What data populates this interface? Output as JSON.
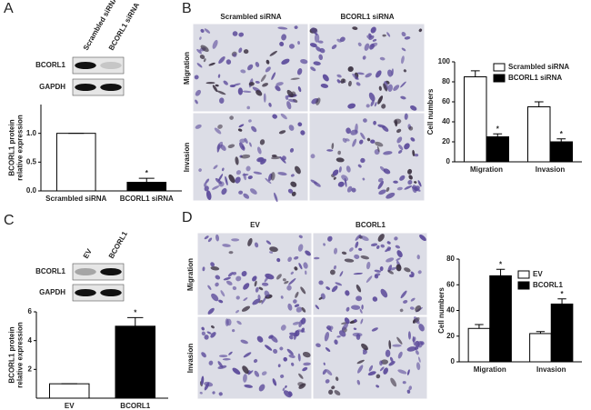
{
  "panels": [
    {
      "label": "A",
      "blot": {
        "columns": [
          "Scrambled siRNA",
          "BCORL1 siRNA"
        ],
        "rows": [
          "BCORL1",
          "GAPDH"
        ]
      }
    },
    {
      "label": "B",
      "images": {
        "columns": [
          "Scrambled siRNA",
          "BCORL1 siRNA"
        ],
        "rows": [
          "Migration",
          "Invasion"
        ]
      }
    },
    {
      "label": "C",
      "blot": {
        "columns": [
          "EV",
          "BCORL1"
        ],
        "rows": [
          "BCORL1",
          "GAPDH"
        ]
      }
    },
    {
      "label": "D",
      "images": {
        "columns": [
          "EV",
          "BCORL1"
        ],
        "rows": [
          "Migration",
          "Invasion"
        ]
      }
    }
  ],
  "chart_data": [
    {
      "type": "bar",
      "ylabel": [
        "BCORL1 protein",
        "relative expression"
      ],
      "categories": [
        "Scrambled siRNA",
        "BCORL1 siRNA"
      ],
      "values": [
        1.0,
        0.15
      ],
      "errors": [
        0,
        0.07
      ],
      "value_annotations": [
        null,
        "*"
      ],
      "colors": [
        "#ffffff",
        "#000000"
      ],
      "ylim": [
        0,
        1.5
      ],
      "yticks": [
        {
          "value": 0,
          "label": "0.0"
        },
        {
          "value": 0.5,
          "label": "0.5"
        },
        {
          "value": 1.0,
          "label": "1.0"
        }
      ]
    },
    {
      "type": "bar",
      "ylabel": [
        "Cell numbers"
      ],
      "categories": [
        "Migration",
        "Invasion"
      ],
      "series": [
        {
          "name": "Scrambled siRNA",
          "color": "#ffffff",
          "values": [
            85,
            55
          ],
          "errors": [
            6,
            5
          ]
        },
        {
          "name": "BCORL1 siRNA",
          "color": "#000000",
          "values": [
            25,
            20
          ],
          "errors": [
            3,
            3
          ],
          "value_annotations": [
            "*",
            "*"
          ]
        }
      ],
      "ylim": [
        0,
        100
      ],
      "yticks": [
        0,
        20,
        40,
        60,
        80,
        100
      ]
    },
    {
      "type": "bar",
      "ylabel": [
        "BCORL1 protein",
        "relative expression"
      ],
      "categories": [
        "EV",
        "BCORL1"
      ],
      "values": [
        1,
        5
      ],
      "errors": [
        0,
        0.6
      ],
      "value_annotations": [
        null,
        "*"
      ],
      "colors": [
        "#ffffff",
        "#000000"
      ],
      "ylim": [
        0,
        6
      ],
      "yticks": [
        2,
        4,
        6
      ]
    },
    {
      "type": "bar",
      "ylabel": [
        "Cell numbers"
      ],
      "categories": [
        "Migration",
        "Invasion"
      ],
      "series": [
        {
          "name": "EV",
          "color": "#ffffff",
          "values": [
            26,
            22
          ],
          "errors": [
            3,
            1.5
          ]
        },
        {
          "name": "BCORL1",
          "color": "#000000",
          "values": [
            67,
            45
          ],
          "errors": [
            5,
            4
          ],
          "value_annotations": [
            "*",
            "*"
          ]
        }
      ],
      "ylim": [
        0,
        80
      ],
      "yticks": [
        0,
        20,
        40,
        60,
        80
      ]
    }
  ]
}
